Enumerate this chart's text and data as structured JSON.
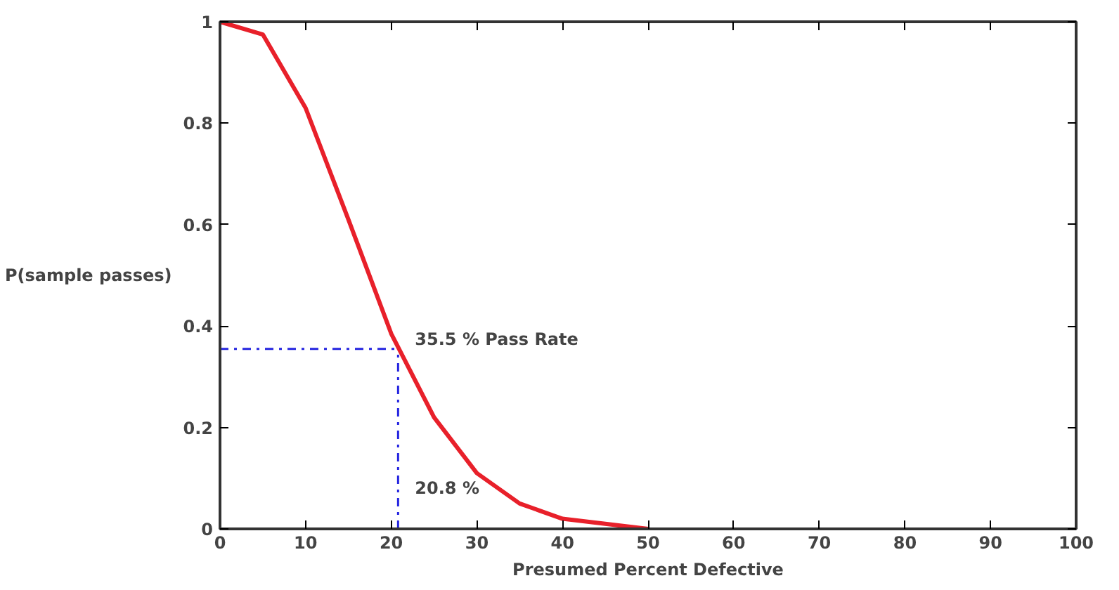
{
  "chart_data": {
    "type": "line",
    "xlabel": "Presumed Percent Defective",
    "ylabel": "P(sample passes)",
    "x": [
      0,
      5,
      10,
      15,
      20,
      25,
      30,
      35,
      40,
      45,
      50
    ],
    "series": [
      {
        "color": "#e8202a",
        "values": [
          1,
          0.975,
          0.83,
          0.61,
          0.385,
          0.22,
          0.11,
          0.05,
          0.02,
          0.01,
          0
        ]
      }
    ],
    "xlim": [
      0,
      100
    ],
    "xticks": [
      0,
      10,
      20,
      30,
      40,
      50,
      60,
      70,
      80,
      90,
      100
    ],
    "ylim": [
      0,
      1
    ],
    "yticks": [
      0,
      0.2,
      0.4,
      0.6,
      0.8,
      1
    ],
    "ref_lines": [
      {
        "axis": "y",
        "value": 0.355,
        "label": "35.5 % Pass Rate",
        "color": "#2424e0",
        "line_style": "dashdot"
      },
      {
        "axis": "x",
        "value": 20.8,
        "label": "20.8 %",
        "color": "#2424e0",
        "line_style": "dashdot"
      }
    ],
    "grid": false,
    "marker": "none",
    "line_style": "solid"
  }
}
